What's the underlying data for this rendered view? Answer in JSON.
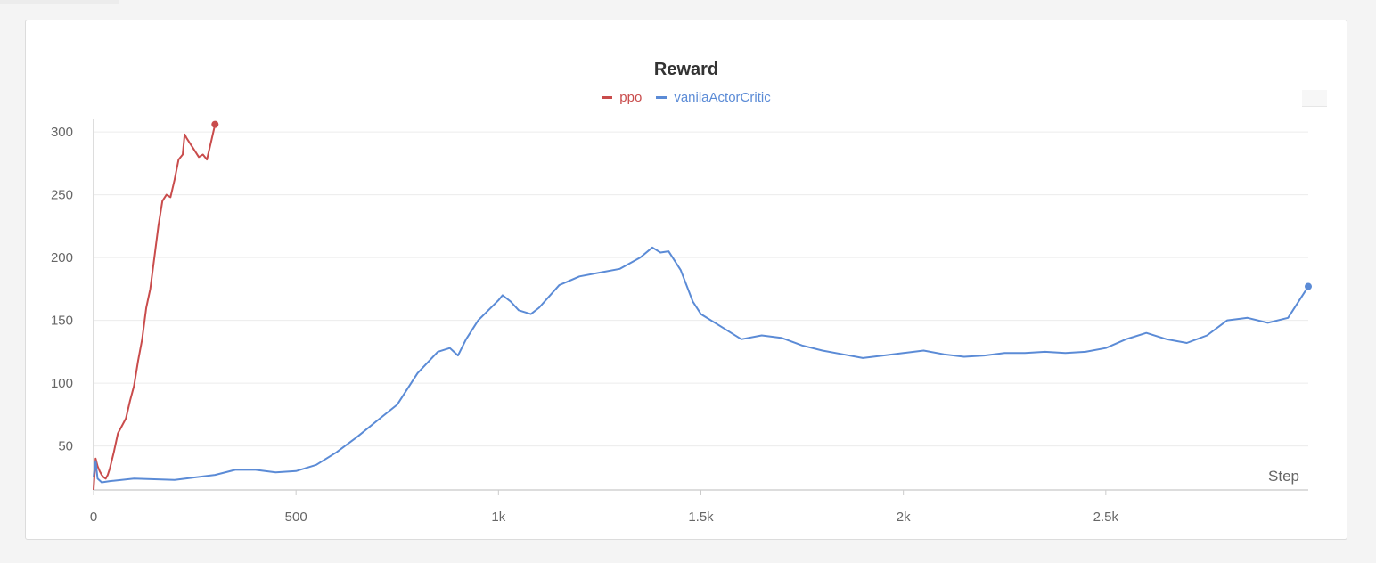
{
  "chart_data": {
    "type": "line",
    "title": "Reward",
    "xlabel": "Step",
    "ylabel": "",
    "xlim": [
      0,
      3000
    ],
    "ylim": [
      15,
      310
    ],
    "x_ticks": [
      0,
      500,
      1000,
      1500,
      2000,
      2500
    ],
    "x_tick_labels": [
      "0",
      "500",
      "1k",
      "1.5k",
      "2k",
      "2.5k"
    ],
    "y_ticks": [
      50,
      100,
      150,
      200,
      250,
      300
    ],
    "y_tick_labels": [
      "50",
      "100",
      "150",
      "200",
      "250",
      "300"
    ],
    "grid": true,
    "legend_position": "top-center",
    "series": [
      {
        "name": "ppo",
        "color": "#c94c4c",
        "x": [
          0,
          5,
          10,
          15,
          20,
          25,
          30,
          35,
          40,
          50,
          60,
          70,
          80,
          90,
          100,
          110,
          120,
          130,
          140,
          150,
          160,
          170,
          180,
          190,
          200,
          210,
          220,
          225,
          230,
          240,
          250,
          260,
          270,
          280,
          290,
          300
        ],
        "y": [
          15,
          40,
          34,
          30,
          27,
          25,
          24,
          27,
          32,
          45,
          60,
          66,
          72,
          86,
          98,
          118,
          135,
          160,
          175,
          200,
          225,
          245,
          250,
          248,
          262,
          278,
          282,
          298,
          295,
          290,
          285,
          280,
          282,
          278,
          292,
          306
        ]
      },
      {
        "name": "vanilaActorCritic",
        "color": "#5b8bd6",
        "x": [
          0,
          5,
          10,
          20,
          40,
          100,
          200,
          300,
          350,
          400,
          450,
          500,
          550,
          600,
          650,
          700,
          750,
          800,
          850,
          880,
          900,
          920,
          950,
          1000,
          1010,
          1030,
          1050,
          1080,
          1100,
          1150,
          1200,
          1250,
          1300,
          1350,
          1380,
          1400,
          1420,
          1450,
          1480,
          1500,
          1550,
          1600,
          1650,
          1700,
          1750,
          1800,
          1850,
          1900,
          1950,
          2000,
          2050,
          2100,
          2150,
          2200,
          2250,
          2300,
          2350,
          2400,
          2450,
          2500,
          2550,
          2600,
          2650,
          2700,
          2750,
          2800,
          2850,
          2900,
          2950,
          3000
        ],
        "y": [
          25,
          38,
          24,
          21,
          22,
          24,
          23,
          27,
          31,
          31,
          29,
          30,
          35,
          45,
          57,
          70,
          83,
          108,
          125,
          128,
          122,
          135,
          150,
          166,
          170,
          165,
          158,
          155,
          160,
          178,
          185,
          188,
          191,
          200,
          208,
          204,
          205,
          190,
          165,
          155,
          145,
          135,
          138,
          136,
          130,
          126,
          123,
          120,
          122,
          124,
          126,
          123,
          121,
          122,
          124,
          124,
          125,
          124,
          125,
          128,
          135,
          140,
          135,
          132,
          138,
          150,
          152,
          148,
          152,
          177
        ]
      }
    ]
  }
}
